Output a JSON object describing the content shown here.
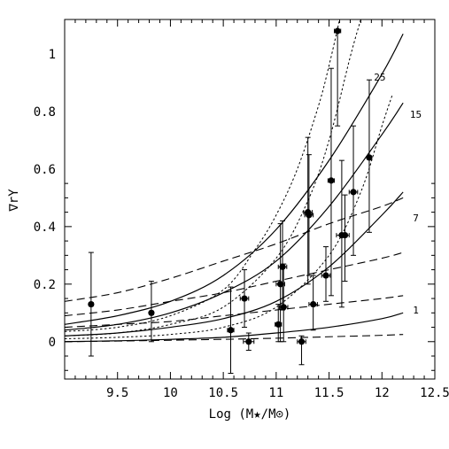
{
  "chart_data": {
    "type": "scatter",
    "xlabel": "Log (M★/M⊙)",
    "ylabel": "∇rΥ",
    "xlim": [
      9.0,
      12.5
    ],
    "ylim": [
      -0.13,
      1.12
    ],
    "xticks": [
      9.5,
      10,
      10.5,
      11,
      11.5,
      12,
      12.5
    ],
    "xtick_labels": [
      "9.5",
      "10",
      "10.5",
      "11",
      "11.5",
      "12",
      "12.5"
    ],
    "yticks": [
      0,
      0.2,
      0.4,
      0.6,
      0.8,
      1
    ],
    "ytick_labels": [
      "0",
      "0.2",
      "0.4",
      "0.6",
      "0.8",
      "1"
    ],
    "grid": false,
    "points": [
      {
        "x": 9.25,
        "y": 0.13,
        "ylo": -0.05,
        "yhi": 0.31,
        "xerr": 0.02
      },
      {
        "x": 9.82,
        "y": 0.1,
        "ylo": 0.0,
        "yhi": 0.21,
        "xerr": 0.02
      },
      {
        "x": 10.57,
        "y": 0.04,
        "ylo": -0.11,
        "yhi": 0.19,
        "xerr": 0.03
      },
      {
        "x": 10.7,
        "y": 0.15,
        "ylo": 0.05,
        "yhi": 0.25,
        "xerr": 0.04
      },
      {
        "x": 10.74,
        "y": 0.0,
        "ylo": -0.03,
        "yhi": 0.03,
        "xerr": 0.05
      },
      {
        "x": 11.02,
        "y": 0.06,
        "ylo": 0.0,
        "yhi": 0.13,
        "xerr": 0.03
      },
      {
        "x": 11.04,
        "y": 0.2,
        "ylo": 0.0,
        "yhi": 0.41,
        "xerr": 0.04
      },
      {
        "x": 11.06,
        "y": 0.26,
        "ylo": 0.11,
        "yhi": 0.42,
        "xerr": 0.04
      },
      {
        "x": 11.07,
        "y": 0.12,
        "ylo": 0.0,
        "yhi": 0.27,
        "xerr": 0.04
      },
      {
        "x": 11.24,
        "y": 0.0,
        "ylo": -0.08,
        "yhi": 0.02,
        "xerr": 0.04
      },
      {
        "x": 11.3,
        "y": 0.45,
        "ylo": 0.2,
        "yhi": 0.71,
        "xerr": 0.04
      },
      {
        "x": 11.31,
        "y": 0.44,
        "ylo": 0.23,
        "yhi": 0.65,
        "xerr": 0.04
      },
      {
        "x": 11.35,
        "y": 0.13,
        "ylo": 0.04,
        "yhi": 0.23,
        "xerr": 0.04
      },
      {
        "x": 11.47,
        "y": 0.23,
        "ylo": 0.14,
        "yhi": 0.33,
        "xerr": 0.04
      },
      {
        "x": 11.52,
        "y": 0.56,
        "ylo": 0.16,
        "yhi": 0.95,
        "xerr": 0.03
      },
      {
        "x": 11.58,
        "y": 1.08,
        "ylo": 0.75,
        "yhi": 1.08,
        "xerr": 0.03
      },
      {
        "x": 11.62,
        "y": 0.37,
        "ylo": 0.12,
        "yhi": 0.63,
        "xerr": 0.05
      },
      {
        "x": 11.65,
        "y": 0.37,
        "ylo": 0.21,
        "yhi": 0.51,
        "xerr": 0.04
      },
      {
        "x": 11.73,
        "y": 0.52,
        "ylo": 0.3,
        "yhi": 0.75,
        "xerr": 0.04
      },
      {
        "x": 11.88,
        "y": 0.64,
        "ylo": 0.38,
        "yhi": 0.91,
        "xerr": 0.02
      }
    ],
    "curves": [
      {
        "style": "solid",
        "x": [
          9.0,
          9.5,
          10.0,
          10.5,
          11.0,
          11.5,
          12.0,
          12.2
        ],
        "y": [
          0.06,
          0.09,
          0.14,
          0.23,
          0.39,
          0.63,
          0.93,
          1.07
        ]
      },
      {
        "style": "solid",
        "x": [
          9.0,
          9.5,
          10.0,
          10.5,
          11.0,
          11.5,
          12.0,
          12.2
        ],
        "y": [
          0.04,
          0.06,
          0.1,
          0.17,
          0.28,
          0.47,
          0.72,
          0.83
        ]
      },
      {
        "style": "solid",
        "x": [
          9.0,
          9.5,
          10.0,
          10.5,
          11.0,
          11.5,
          12.0,
          12.2
        ],
        "y": [
          0.02,
          0.03,
          0.05,
          0.08,
          0.14,
          0.26,
          0.44,
          0.52
        ]
      },
      {
        "style": "solid",
        "x": [
          9.0,
          9.5,
          10.0,
          10.5,
          11.0,
          11.5,
          12.0,
          12.2
        ],
        "y": [
          0.0,
          0.003,
          0.008,
          0.015,
          0.03,
          0.05,
          0.08,
          0.1
        ]
      },
      {
        "style": "dashed",
        "x": [
          9.0,
          9.5,
          10.0,
          10.5,
          11.0,
          11.5,
          12.0,
          12.2
        ],
        "y": [
          0.14,
          0.17,
          0.22,
          0.28,
          0.34,
          0.41,
          0.47,
          0.5
        ]
      },
      {
        "style": "dashed",
        "x": [
          9.0,
          9.5,
          10.0,
          10.5,
          11.0,
          11.5,
          12.0,
          12.2
        ],
        "y": [
          0.09,
          0.11,
          0.14,
          0.17,
          0.21,
          0.25,
          0.29,
          0.31
        ]
      },
      {
        "style": "dashed",
        "x": [
          9.0,
          9.5,
          10.0,
          10.5,
          11.0,
          11.5,
          12.0,
          12.2
        ],
        "y": [
          0.05,
          0.06,
          0.07,
          0.09,
          0.11,
          0.13,
          0.15,
          0.16
        ]
      },
      {
        "style": "dashed",
        "x": [
          9.0,
          9.5,
          10.0,
          10.5,
          11.0,
          11.5,
          12.0,
          12.2
        ],
        "y": [
          0.0,
          0.002,
          0.005,
          0.008,
          0.012,
          0.017,
          0.022,
          0.025
        ]
      },
      {
        "style": "dotted",
        "x": [
          9.0,
          9.5,
          10.0,
          10.5,
          10.8,
          11.0,
          11.2,
          11.4,
          11.5,
          11.6
        ],
        "y": [
          0.035,
          0.05,
          0.09,
          0.18,
          0.32,
          0.44,
          0.6,
          0.82,
          0.96,
          1.12
        ]
      },
      {
        "style": "dotted",
        "x": [
          9.0,
          9.5,
          10.0,
          10.5,
          11.0,
          11.3,
          11.5,
          11.7,
          11.8
        ],
        "y": [
          0.02,
          0.03,
          0.06,
          0.12,
          0.29,
          0.49,
          0.7,
          0.99,
          1.12
        ]
      },
      {
        "style": "dotted",
        "x": [
          9.0,
          9.5,
          10.0,
          10.5,
          11.0,
          11.5,
          11.8,
          12.0,
          12.1
        ],
        "y": [
          0.01,
          0.015,
          0.025,
          0.05,
          0.12,
          0.3,
          0.52,
          0.75,
          0.86
        ]
      }
    ],
    "curve_labels": [
      {
        "text": "25",
        "x": 11.98,
        "y": 0.92
      },
      {
        "text": "15",
        "x": 12.32,
        "y": 0.79
      },
      {
        "text": "7",
        "x": 12.32,
        "y": 0.43
      },
      {
        "text": "1",
        "x": 12.32,
        "y": 0.11
      }
    ]
  }
}
